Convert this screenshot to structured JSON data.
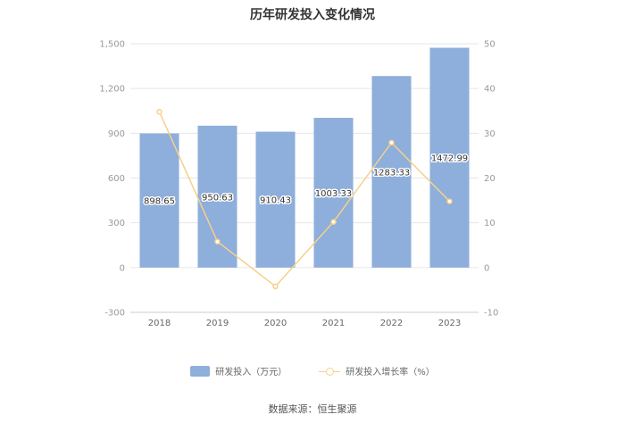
{
  "chart_data": {
    "type": "bar",
    "title": "历年研发投入变化情况",
    "categories": [
      "2018",
      "2019",
      "2020",
      "2021",
      "2022",
      "2023"
    ],
    "series": [
      {
        "name": "研发投入（万元）",
        "type": "bar",
        "axis": "left",
        "color": "#8eaedb",
        "values": [
          898.65,
          950.63,
          910.43,
          1003.33,
          1283.33,
          1472.99
        ]
      },
      {
        "name": "研发投入增长率（%）",
        "type": "line",
        "axis": "right",
        "color": "#f7d08a",
        "values": [
          34.8,
          5.8,
          -4.2,
          10.2,
          27.9,
          14.8
        ]
      }
    ],
    "y_left": {
      "min": -300,
      "max": 1500,
      "ticks": [
        "-300",
        "0",
        "300",
        "600",
        "900",
        "1,200",
        "1,500"
      ]
    },
    "y_right": {
      "min": -10,
      "max": 50,
      "ticks": [
        "-10",
        "0",
        "10",
        "20",
        "30",
        "40",
        "50"
      ]
    },
    "grid": true,
    "legend_position": "bottom"
  },
  "source": "数据来源：恒生聚源"
}
